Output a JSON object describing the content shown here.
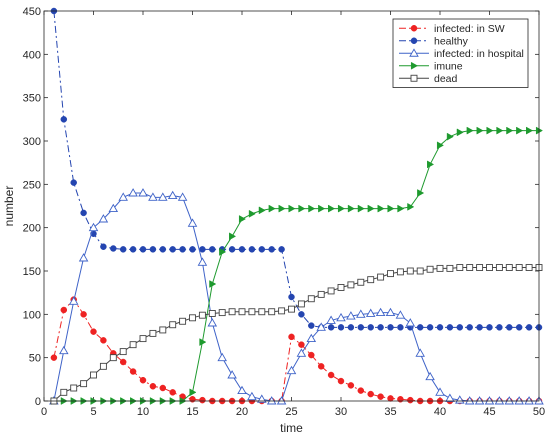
{
  "chart_data": {
    "type": "line",
    "title": "",
    "xlabel": "time",
    "ylabel": "number",
    "xlim": [
      0,
      50
    ],
    "ylim": [
      0,
      450
    ],
    "xticks": [
      0,
      5,
      10,
      15,
      20,
      25,
      30,
      35,
      40,
      45,
      50
    ],
    "yticks": [
      0,
      50,
      100,
      150,
      200,
      250,
      300,
      350,
      400,
      450
    ],
    "grid": false,
    "legend_position": "top-right",
    "series": [
      {
        "name": "infected: in SW",
        "color": "#ee2222",
        "line_style": "dashdot",
        "marker": "circle-filled",
        "x": [
          1,
          2,
          3,
          4,
          5,
          6,
          7,
          8,
          9,
          10,
          11,
          12,
          13,
          14,
          15,
          16,
          17,
          18,
          19,
          20,
          21,
          22,
          23,
          24,
          25,
          26,
          27,
          28,
          29,
          30,
          31,
          32,
          33,
          34,
          35,
          36,
          37,
          38,
          39,
          40,
          41,
          42,
          43,
          44,
          45,
          46,
          47,
          48,
          49,
          50
        ],
        "y": [
          50,
          105,
          117,
          100,
          80,
          70,
          55,
          45,
          34,
          24,
          17,
          15,
          10,
          5,
          2,
          1,
          0,
          0,
          0,
          0,
          0,
          0,
          0,
          0,
          74,
          65,
          53,
          40,
          30,
          23,
          18,
          12,
          8,
          5,
          3,
          2,
          1,
          0,
          0,
          0,
          0,
          0,
          0,
          0,
          0,
          0,
          0,
          0,
          0,
          0
        ]
      },
      {
        "name": "healthy",
        "color": "#2445b0",
        "line_style": "dashdot",
        "marker": "circle-filled",
        "x": [
          1,
          2,
          3,
          4,
          5,
          6,
          7,
          8,
          9,
          10,
          11,
          12,
          13,
          14,
          15,
          16,
          17,
          18,
          19,
          20,
          21,
          22,
          23,
          24,
          25,
          26,
          27,
          28,
          29,
          30,
          31,
          32,
          33,
          34,
          35,
          36,
          37,
          38,
          39,
          40,
          41,
          42,
          43,
          44,
          45,
          46,
          47,
          48,
          49,
          50
        ],
        "y": [
          450,
          325,
          252,
          217,
          193,
          178,
          176,
          175,
          175,
          175,
          175,
          175,
          175,
          175,
          175,
          175,
          175,
          175,
          175,
          175,
          175,
          175,
          175,
          175,
          120,
          100,
          87,
          85,
          85,
          85,
          85,
          85,
          85,
          85,
          85,
          85,
          85,
          85,
          85,
          85,
          85,
          85,
          85,
          85,
          85,
          85,
          85,
          85,
          85,
          85
        ]
      },
      {
        "name": "infected: in hospital",
        "color": "#3f63c8",
        "line_style": "solid",
        "marker": "triangle-up-open",
        "x": [
          1,
          2,
          3,
          4,
          5,
          6,
          7,
          8,
          9,
          10,
          11,
          12,
          13,
          14,
          15,
          16,
          17,
          18,
          19,
          20,
          21,
          22,
          23,
          24,
          25,
          26,
          27,
          28,
          29,
          30,
          31,
          32,
          33,
          34,
          35,
          36,
          37,
          38,
          39,
          40,
          41,
          42,
          43,
          44,
          45,
          46,
          47,
          48,
          49,
          50
        ],
        "y": [
          0,
          58,
          115,
          165,
          200,
          210,
          222,
          235,
          240,
          240,
          235,
          235,
          237,
          235,
          205,
          160,
          90,
          50,
          30,
          12,
          5,
          2,
          0,
          0,
          35,
          55,
          72,
          85,
          93,
          96,
          98,
          100,
          101,
          102,
          102,
          99,
          90,
          55,
          28,
          10,
          3,
          1,
          0,
          0,
          0,
          0,
          0,
          0,
          0,
          0
        ]
      },
      {
        "name": "imune",
        "color": "#1e9a2e",
        "line_style": "solid",
        "marker": "triangle-right-filled",
        "x": [
          1,
          2,
          3,
          4,
          5,
          6,
          7,
          8,
          9,
          10,
          11,
          12,
          13,
          14,
          15,
          16,
          17,
          18,
          19,
          20,
          21,
          22,
          23,
          24,
          25,
          26,
          27,
          28,
          29,
          30,
          31,
          32,
          33,
          34,
          35,
          36,
          37,
          38,
          39,
          40,
          41,
          42,
          43,
          44,
          45,
          46,
          47,
          48,
          49,
          50
        ],
        "y": [
          0,
          0,
          0,
          0,
          0,
          0,
          0,
          0,
          0,
          0,
          0,
          0,
          0,
          0,
          10,
          68,
          135,
          172,
          190,
          210,
          216,
          220,
          222,
          222,
          222,
          222,
          222,
          222,
          222,
          222,
          222,
          222,
          222,
          222,
          222,
          222,
          224,
          240,
          273,
          295,
          305,
          310,
          312,
          312,
          312,
          312,
          312,
          312,
          312,
          312
        ]
      },
      {
        "name": "dead",
        "color": "#444444",
        "line_style": "solid",
        "marker": "square-open",
        "x": [
          1,
          2,
          3,
          4,
          5,
          6,
          7,
          8,
          9,
          10,
          11,
          12,
          13,
          14,
          15,
          16,
          17,
          18,
          19,
          20,
          21,
          22,
          23,
          24,
          25,
          26,
          27,
          28,
          29,
          30,
          31,
          32,
          33,
          34,
          35,
          36,
          37,
          38,
          39,
          40,
          41,
          42,
          43,
          44,
          45,
          46,
          47,
          48,
          49,
          50
        ],
        "y": [
          0,
          10,
          15,
          20,
          30,
          40,
          50,
          57,
          65,
          72,
          78,
          82,
          88,
          92,
          96,
          99,
          101,
          102,
          103,
          103,
          103,
          103,
          103,
          104,
          106,
          112,
          118,
          123,
          127,
          131,
          134,
          137,
          140,
          143,
          147,
          149,
          150,
          150,
          152,
          153,
          153,
          154,
          154,
          154,
          154,
          154,
          154,
          154,
          154,
          154
        ]
      }
    ]
  }
}
